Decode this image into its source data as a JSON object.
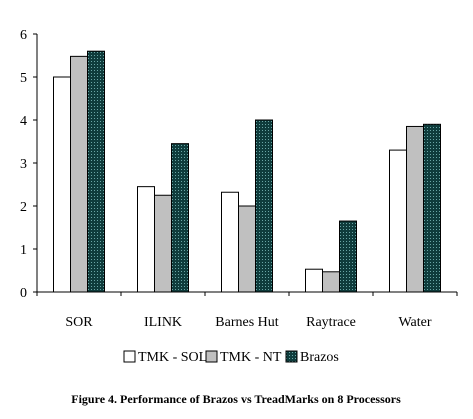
{
  "chart_data": {
    "type": "bar",
    "title": "",
    "xlabel": "",
    "ylabel": "",
    "ylim": [
      0,
      6
    ],
    "yticks": [
      "0",
      "1",
      "2",
      "3",
      "4",
      "5",
      "6"
    ],
    "categories": [
      "SOR",
      "ILINK",
      "Barnes Hut",
      "Raytrace",
      "Water"
    ],
    "series": [
      {
        "name": "TMK - SOL",
        "color": "#ffffff",
        "pattern": "solid",
        "values": [
          5.0,
          2.45,
          2.32,
          0.53,
          3.3
        ]
      },
      {
        "name": "TMK - NT",
        "color": "#c0c0c0",
        "pattern": "solid",
        "values": [
          5.48,
          2.25,
          2.0,
          0.47,
          3.85
        ]
      },
      {
        "name": "Brazos",
        "color": "#1e4f4f",
        "pattern": "dotted",
        "values": [
          5.6,
          3.45,
          4.0,
          1.65,
          3.9
        ]
      }
    ],
    "legend_position": "bottom",
    "grid": false
  },
  "caption": "Figure 4. Performance of Brazos vs TreadMarks on 8 Processors"
}
